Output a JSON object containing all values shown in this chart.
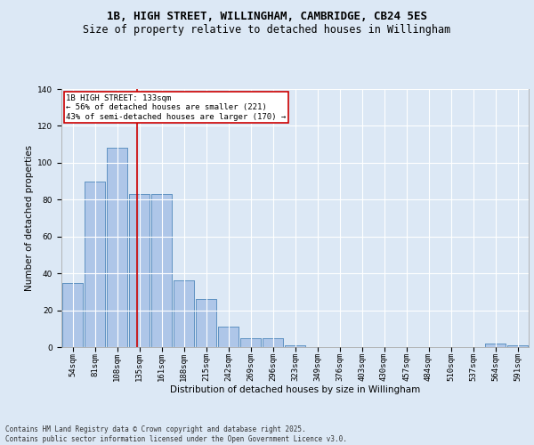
{
  "title1": "1B, HIGH STREET, WILLINGHAM, CAMBRIDGE, CB24 5ES",
  "title2": "Size of property relative to detached houses in Willingham",
  "xlabel": "Distribution of detached houses by size in Willingham",
  "ylabel": "Number of detached properties",
  "bar_labels": [
    "54sqm",
    "81sqm",
    "108sqm",
    "135sqm",
    "161sqm",
    "188sqm",
    "215sqm",
    "242sqm",
    "269sqm",
    "296sqm",
    "323sqm",
    "349sqm",
    "376sqm",
    "403sqm",
    "430sqm",
    "457sqm",
    "484sqm",
    "510sqm",
    "537sqm",
    "564sqm",
    "591sqm"
  ],
  "bar_values": [
    35,
    90,
    108,
    83,
    83,
    36,
    26,
    11,
    5,
    5,
    1,
    0,
    0,
    0,
    0,
    0,
    0,
    0,
    0,
    2,
    1
  ],
  "bar_color": "#aec6e8",
  "bar_edge_color": "#5a8fc0",
  "fig_background_color": "#dce8f5",
  "axes_background_color": "#dce8f5",
  "grid_color": "#ffffff",
  "vline_x_index": 2.88,
  "vline_color": "#cc0000",
  "annotation_text": "1B HIGH STREET: 133sqm\n← 56% of detached houses are smaller (221)\n43% of semi-detached houses are larger (170) →",
  "annotation_box_color": "#ffffff",
  "annotation_edge_color": "#cc0000",
  "ylim": [
    0,
    140
  ],
  "yticks": [
    0,
    20,
    40,
    60,
    80,
    100,
    120,
    140
  ],
  "footer_text": "Contains HM Land Registry data © Crown copyright and database right 2025.\nContains public sector information licensed under the Open Government Licence v3.0.",
  "title_fontsize": 9,
  "subtitle_fontsize": 8.5,
  "axis_label_fontsize": 7.5,
  "tick_fontsize": 6.5,
  "annotation_fontsize": 6.5,
  "footer_fontsize": 5.5
}
